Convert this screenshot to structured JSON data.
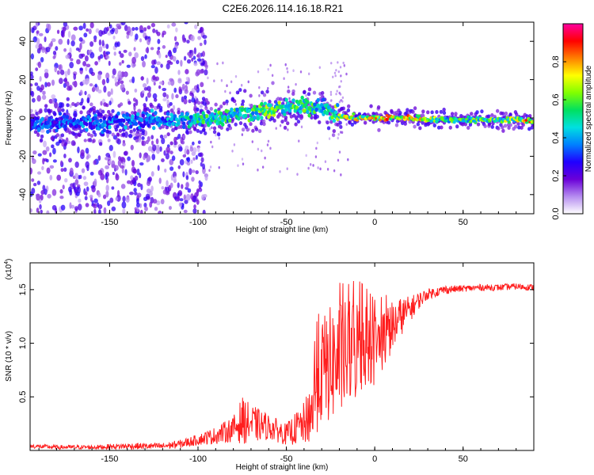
{
  "title": "C2E6.2026.114.16.18.R21",
  "colors": {
    "snr_line": "#ff1e1e",
    "frame": "#000000",
    "background": "#ffffff"
  },
  "chart_data": [
    {
      "type": "heatmap",
      "name": "spectrogram",
      "xlabel": "Height of straight line (km)",
      "ylabel": "Frequency (Hz)",
      "xlim": [
        -195,
        90
      ],
      "ylim": [
        -50,
        50
      ],
      "xticks": [
        -150,
        -100,
        -50,
        0,
        50
      ],
      "xtick_labels": [
        "-150",
        "-100",
        "-50",
        "0",
        "50"
      ],
      "yticks": [
        -40,
        -20,
        0,
        20,
        40
      ],
      "ytick_labels": [
        "-40",
        "-20",
        "0",
        "20",
        "40"
      ],
      "colorbar": {
        "label": "Normalized spectral amplitude",
        "range": [
          0,
          1
        ],
        "ticks": [
          0.0,
          0.2,
          0.4,
          0.6,
          0.8
        ],
        "tick_labels": [
          "0.0",
          "0.2",
          "0.4",
          "0.6",
          "0.8"
        ],
        "colormap": [
          "#ffffff",
          "#b58cf0",
          "#6a00d8",
          "#2000ff",
          "#0080ff",
          "#00e0e0",
          "#00e060",
          "#80ff00",
          "#ffff00",
          "#ff8000",
          "#ff0000",
          "#ff00a0"
        ]
      },
      "ridge": {
        "description": "main spectral ridge center frequency (Hz) vs height (km)",
        "x": [
          -195,
          -150,
          -120,
          -100,
          -80,
          -60,
          -45,
          -30,
          -25,
          -20,
          -10,
          0,
          10,
          20,
          40,
          60,
          80,
          90
        ],
        "y": [
          -3,
          -2,
          -1,
          -1,
          2,
          4,
          6,
          6,
          3,
          1,
          0,
          0,
          0,
          0,
          -1,
          -1,
          -1,
          -2
        ],
        "amplitude": [
          0.35,
          0.4,
          0.45,
          0.55,
          0.6,
          0.65,
          0.6,
          0.6,
          0.55,
          0.7,
          0.75,
          0.8,
          0.9,
          0.85,
          0.6,
          0.65,
          0.7,
          0.95
        ]
      }
    },
    {
      "type": "line",
      "name": "snr",
      "xlabel": "Height of straight line (km)",
      "ylabel": "SNR (10 * v/v)",
      "scale_label": "(x10",
      "scale_exponent": "4",
      "scale_suffix": ")",
      "xlim": [
        -195,
        90
      ],
      "ylim": [
        0,
        1.75
      ],
      "xticks": [
        -150,
        -100,
        -50,
        0,
        50
      ],
      "xtick_labels": [
        "-150",
        "-100",
        "-50",
        "0",
        "50"
      ],
      "yticks": [
        0.5,
        1.0,
        1.5
      ],
      "ytick_labels": [
        "0.5",
        "1.0",
        "1.5"
      ],
      "series": [
        {
          "name": "SNR",
          "x": [
            -195,
            -180,
            -160,
            -140,
            -120,
            -110,
            -100,
            -90,
            -80,
            -75,
            -70,
            -60,
            -50,
            -45,
            -40,
            -35,
            -33,
            -30,
            -25,
            -20,
            -15,
            -10,
            -5,
            0,
            5,
            10,
            15,
            20,
            25,
            30,
            40,
            50,
            60,
            70,
            80,
            90
          ],
          "y": [
            0.04,
            0.03,
            0.03,
            0.04,
            0.04,
            0.06,
            0.1,
            0.14,
            0.2,
            0.28,
            0.25,
            0.22,
            0.15,
            0.2,
            0.25,
            0.4,
            0.6,
            0.75,
            0.8,
            0.85,
            0.9,
            0.95,
            1.0,
            0.95,
            1.05,
            1.15,
            1.25,
            1.32,
            1.4,
            1.46,
            1.5,
            1.51,
            1.52,
            1.52,
            1.53,
            1.52
          ],
          "noise": [
            0.02,
            0.02,
            0.02,
            0.03,
            0.03,
            0.04,
            0.05,
            0.08,
            0.12,
            0.22,
            0.18,
            0.12,
            0.1,
            0.15,
            0.2,
            0.35,
            0.45,
            0.5,
            0.55,
            0.55,
            0.5,
            0.5,
            0.4,
            0.35,
            0.3,
            0.25,
            0.18,
            0.12,
            0.08,
            0.05,
            0.04,
            0.03,
            0.03,
            0.03,
            0.03,
            0.03
          ]
        }
      ]
    }
  ]
}
